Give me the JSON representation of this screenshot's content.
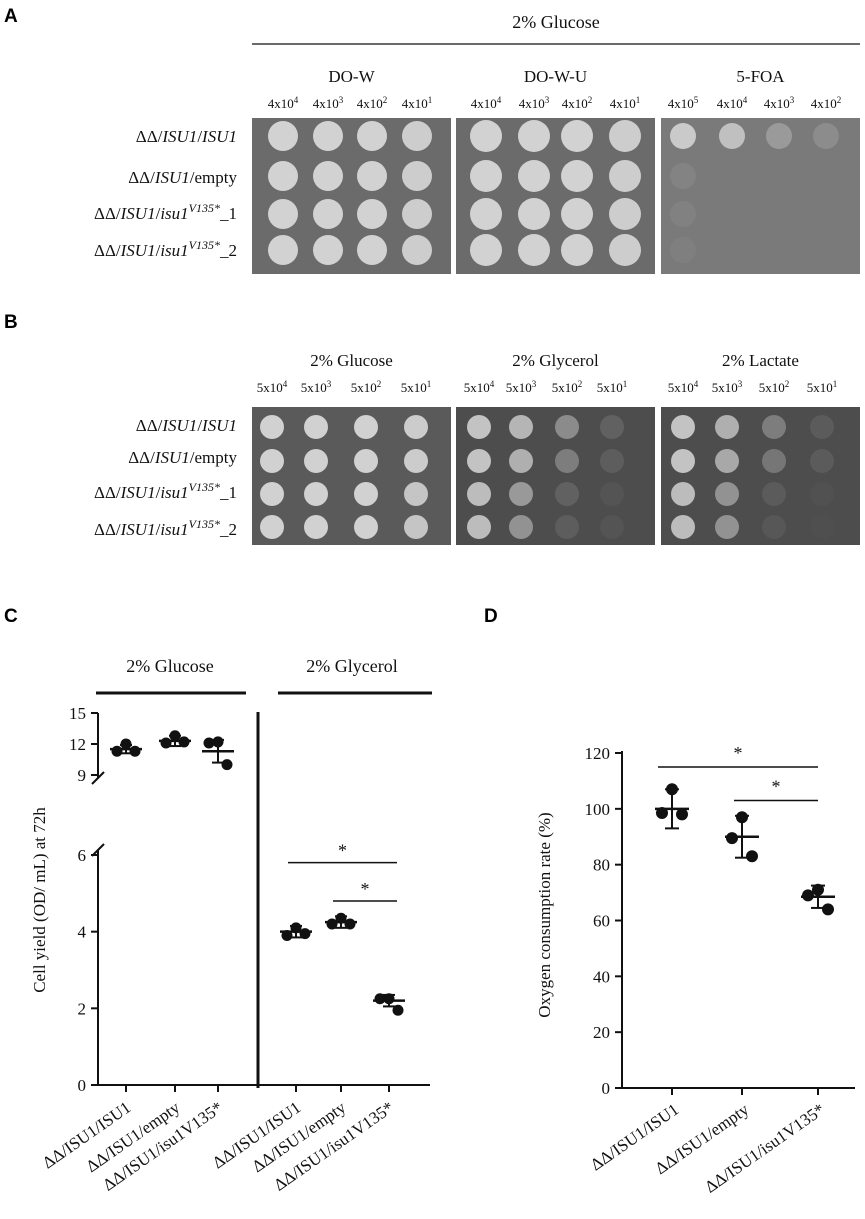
{
  "panel_labels": {
    "a": "A",
    "b": "B",
    "c": "C",
    "d": "D"
  },
  "panel_a": {
    "top_condition": "2% Glucose",
    "plates": [
      {
        "title": "DO-W",
        "dilutions": [
          "4x10",
          "4x10",
          "4x10",
          "4x10"
        ],
        "exponents": [
          "4",
          "3",
          "2",
          "1"
        ]
      },
      {
        "title": "DO-W-U",
        "dilutions": [
          "4x10",
          "4x10",
          "4x10",
          "4x10"
        ],
        "exponents": [
          "4",
          "3",
          "2",
          "1"
        ]
      },
      {
        "title": "5-FOA",
        "dilutions": [
          "4x10",
          "4x10",
          "4x10",
          "4x10"
        ],
        "exponents": [
          "5",
          "4",
          "3",
          "2"
        ]
      }
    ]
  },
  "panel_b": {
    "plates": [
      {
        "title": "2% Glucose",
        "dilutions": [
          "5x10",
          "5x10",
          "5x10",
          "5x10"
        ],
        "exponents": [
          "4",
          "3",
          "2",
          "1"
        ]
      },
      {
        "title": "2% Glycerol",
        "dilutions": [
          "5x10",
          "5x10",
          "5x10",
          "5x10"
        ],
        "exponents": [
          "4",
          "3",
          "2",
          "1"
        ]
      },
      {
        "title": "2% Lactate",
        "dilutions": [
          "5x10",
          "5x10",
          "5x10",
          "5x10"
        ],
        "exponents": [
          "4",
          "3",
          "2",
          "1"
        ]
      }
    ]
  },
  "strain_rows": [
    {
      "prefix": "ΔΔ/",
      "gene1": "ISU1",
      "sep": "/",
      "gene2": "ISU1",
      "sup": "",
      "suffix": ""
    },
    {
      "prefix": "ΔΔ/",
      "gene1": "ISU1",
      "sep": "/",
      "gene2": "",
      "sup": "",
      "suffix": "empty"
    },
    {
      "prefix": "ΔΔ/",
      "gene1": "ISU1",
      "sep": "/",
      "gene2": "isu1",
      "sup": "V135*",
      "suffix": "_1"
    },
    {
      "prefix": "ΔΔ/",
      "gene1": "ISU1",
      "sep": "/",
      "gene2": "isu1",
      "sup": "V135*",
      "suffix": "_2"
    }
  ],
  "chart_data": [
    {
      "type": "scatter",
      "panel": "C",
      "ylabel": "Cell yield (OD/  mL) at 72h",
      "y_ticks_lower": [
        "0",
        "2",
        "4",
        "6"
      ],
      "y_ticks_upper": [
        "9",
        "12",
        "15"
      ],
      "axis_break": "between 6 and 9",
      "groups": [
        {
          "condition": "2% Glucose",
          "categories": [
            "ΔΔ/ISU1/ISU1",
            "ΔΔ/ISU1/empty",
            "ΔΔ/ISU1/isu1V135*"
          ],
          "means": [
            11.5,
            12.3,
            11.3
          ],
          "sd": [
            0.4,
            0.5,
            1.1
          ],
          "points": [
            [
              12.0,
              11.3,
              11.3
            ],
            [
              12.8,
              12.1,
              12.2
            ],
            [
              12.2,
              12.1,
              10.0
            ]
          ]
        },
        {
          "condition": "2% Glycerol",
          "categories": [
            "ΔΔ/ISU1/ISU1",
            "ΔΔ/ISU1/empty",
            "ΔΔ/ISU1/isu1V135*"
          ],
          "means": [
            4.0,
            4.25,
            2.2
          ],
          "sd": [
            0.15,
            0.15,
            0.15
          ],
          "points": [
            [
              4.1,
              3.9,
              3.95
            ],
            [
              4.35,
              4.2,
              4.2
            ],
            [
              2.25,
              2.25,
              1.95
            ]
          ]
        }
      ],
      "significance": [
        {
          "from": 0,
          "to": 2,
          "group": "2% Glycerol",
          "y": 5.8,
          "label": "*"
        },
        {
          "from": 1,
          "to": 2,
          "group": "2% Glycerol",
          "y": 4.8,
          "label": "*"
        }
      ]
    },
    {
      "type": "scatter",
      "panel": "D",
      "ylabel": "Oxygen  consumption  rate (%)",
      "ylim": [
        0,
        120
      ],
      "y_ticks": [
        "0",
        "20",
        "40",
        "60",
        "80",
        "100",
        "120"
      ],
      "categories": [
        "ΔΔ/ISU1/ISU1",
        "ΔΔ/ISU1/empty",
        "ΔΔ/ISU1/isu1V135*"
      ],
      "means": [
        100,
        90,
        68.5
      ],
      "sd": [
        7,
        7.5,
        4
      ],
      "points": [
        [
          107,
          98.5,
          98
        ],
        [
          97,
          89.5,
          83
        ],
        [
          71,
          69,
          64
        ]
      ],
      "significance": [
        {
          "from": 0,
          "to": 2,
          "y": 115,
          "label": "*"
        },
        {
          "from": 1,
          "to": 2,
          "y": 103,
          "label": "*"
        }
      ]
    }
  ],
  "colors": {
    "plate_a_bg": "#6b6b6b",
    "plate_b_bg": "#555555",
    "spot": "#d8d8d8",
    "ink": "#111111"
  }
}
